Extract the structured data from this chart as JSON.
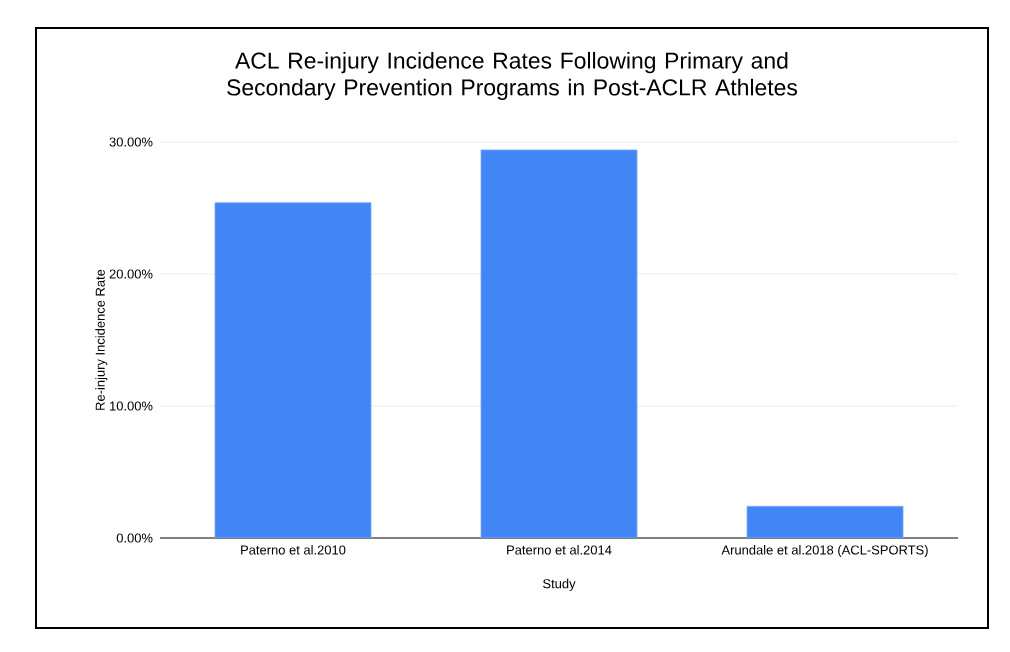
{
  "chart_data": {
    "type": "bar",
    "title": "ACL Re-injury Incidence Rates Following Primary and Secondary Prevention Programs in Post-ACLR Athletes",
    "xlabel": "Study",
    "ylabel": "Re-injury Incidence Rate",
    "categories": [
      "Paterno et al.2010",
      "Paterno et al.2014",
      "Arundale et al.2018 (ACL-SPORTS)"
    ],
    "values": [
      25.4,
      29.4,
      2.4
    ],
    "color": "#4285f4",
    "ylim": [
      0,
      30
    ],
    "yticks": [
      {
        "value": 0,
        "label": "0.00%"
      },
      {
        "value": 10,
        "label": "10.00%"
      },
      {
        "value": 20,
        "label": "20.00%"
      },
      {
        "value": 30,
        "label": "30.00%"
      }
    ],
    "grid": "y"
  }
}
